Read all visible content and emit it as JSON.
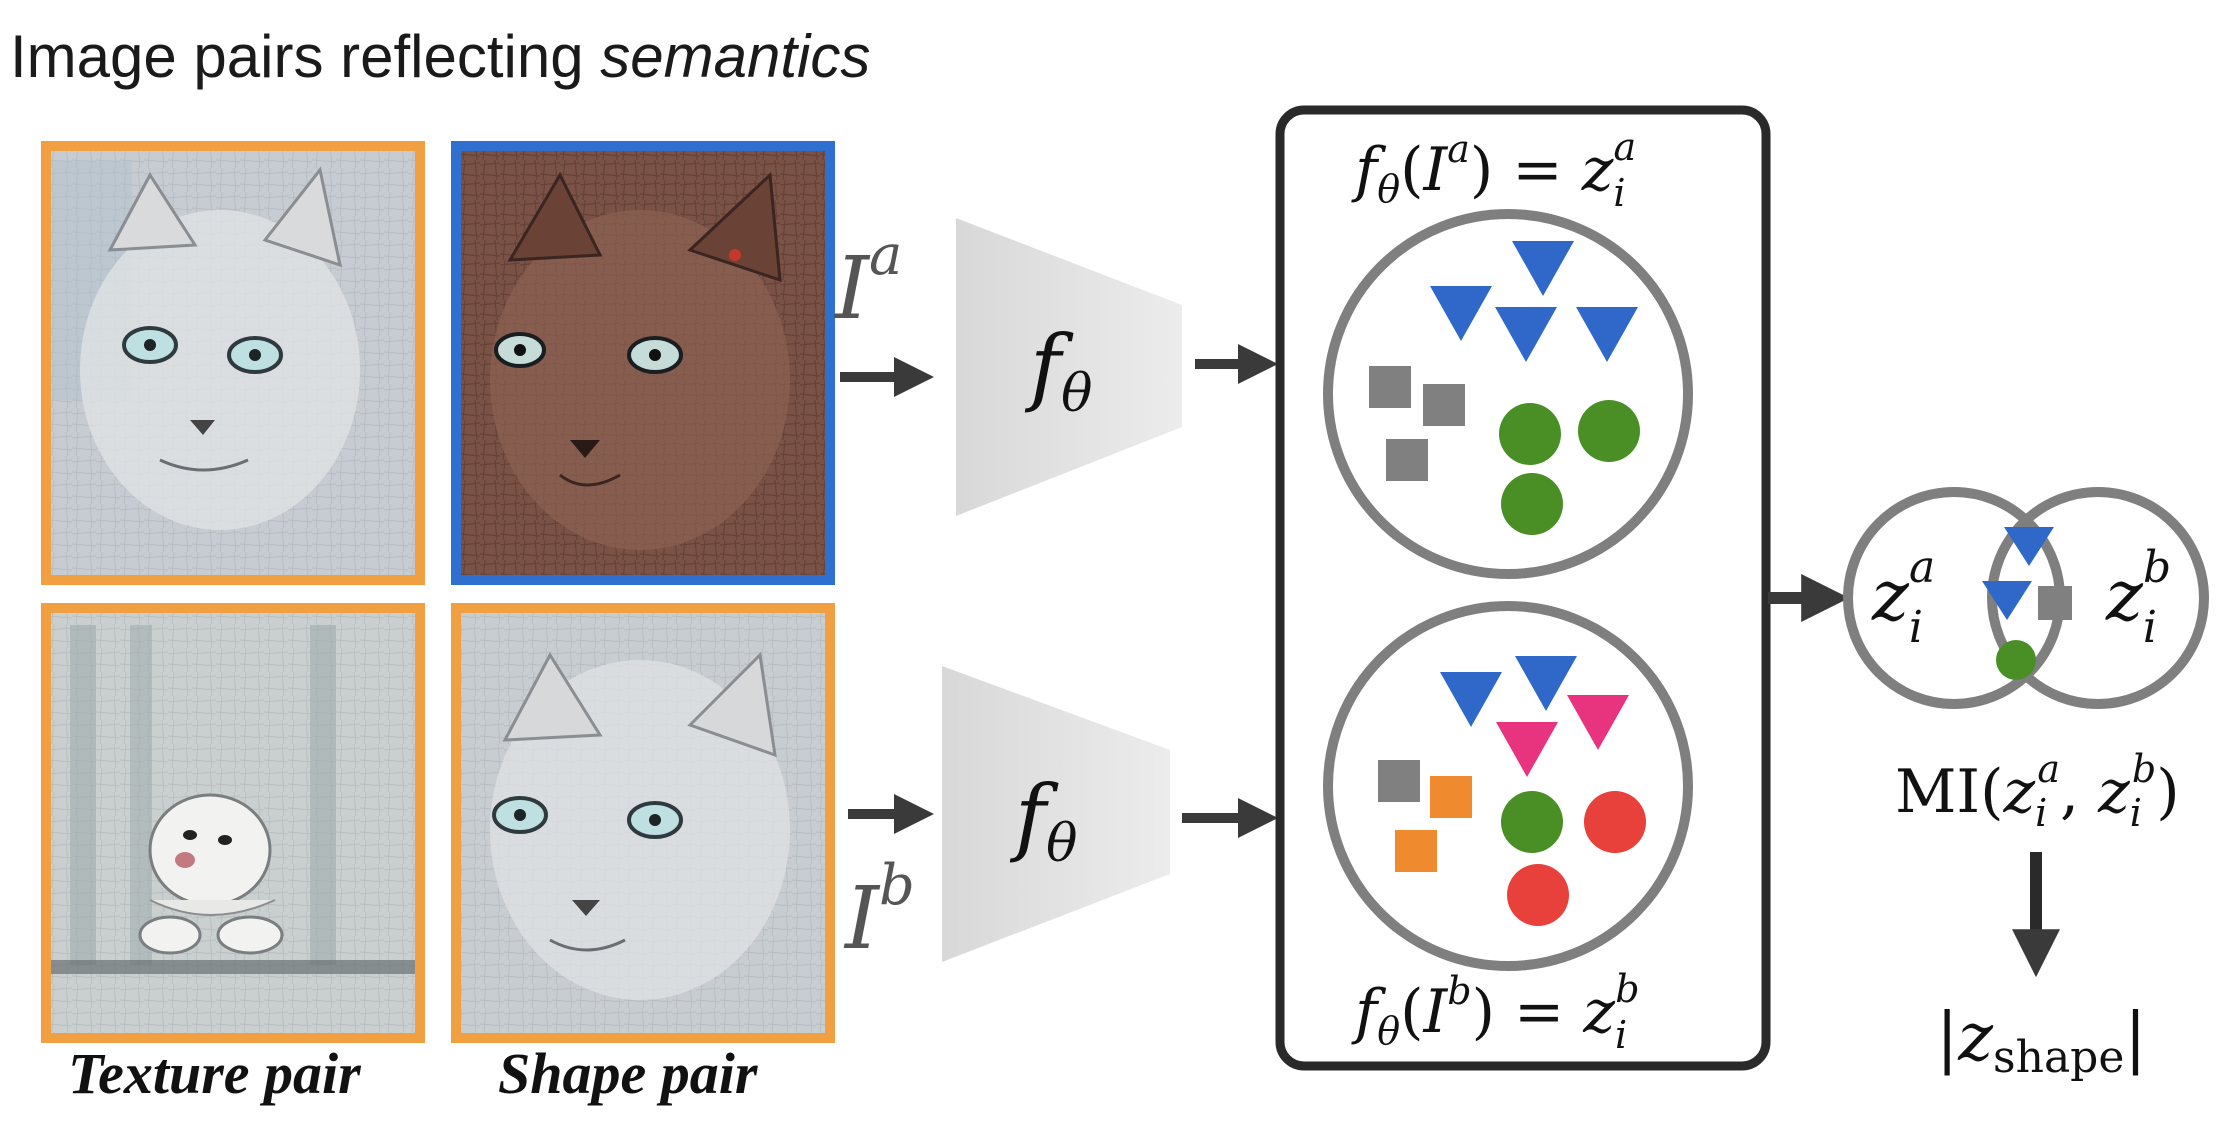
{
  "title": {
    "prefix": "Image pairs reflecting ",
    "emphasis": "semantics"
  },
  "captions": {
    "texture": "Texture pair",
    "shape": "Shape pair"
  },
  "images": [
    {
      "name": "texture-pair-cat",
      "border": "#f0a040",
      "tone": "#c8ccd0"
    },
    {
      "name": "shape-pair-cat-brown",
      "border": "#2f6fcf",
      "tone": "#7a5246"
    },
    {
      "name": "texture-pair-dog",
      "border": "#f0a040",
      "tone": "#c9d0cf"
    },
    {
      "name": "shape-pair-cat-gray",
      "border": "#f0a040",
      "tone": "#c8cdd1"
    }
  ],
  "inputs": {
    "a": {
      "base": "I",
      "sup": "a"
    },
    "b": {
      "base": "I",
      "sup": "b"
    }
  },
  "encoder": {
    "base": "f",
    "sub": "θ"
  },
  "embeddings": {
    "top": {
      "f": "f",
      "theta": "θ",
      "I": "I",
      "sup": "a",
      "eq": "=",
      "z": "z",
      "zsub": "i",
      "zsup": "a"
    },
    "bottom": {
      "f": "f",
      "theta": "θ",
      "I": "I",
      "sup": "b",
      "eq": "=",
      "z": "z",
      "zsub": "i",
      "zsup": "b"
    }
  },
  "venn": {
    "left": {
      "z": "z",
      "sub": "i",
      "sup": "a"
    },
    "right": {
      "z": "z",
      "sub": "i",
      "sup": "b"
    }
  },
  "mi": {
    "label": "MI(",
    "z1": "z",
    "sub1": "i",
    "sup1": "a",
    "comma": ",",
    "z2": "z",
    "sub2": "i",
    "sup2": "b",
    "close": ")"
  },
  "output": {
    "bar_l": "|",
    "z": "z",
    "sub": "shape",
    "bar_r": "|"
  },
  "colors": {
    "texture_border": "#f0a040",
    "shape_border": "#2f6fcf",
    "triangle_blue": "#2f68c9",
    "triangle_pink": "#e8337f",
    "square_gray": "#808080",
    "square_orange": "#ef8a2e",
    "circle_green": "#4a8f26",
    "circle_red": "#e8403a",
    "circle_stroke": "#7f7f7f",
    "arrow": "#3a3a3a"
  }
}
